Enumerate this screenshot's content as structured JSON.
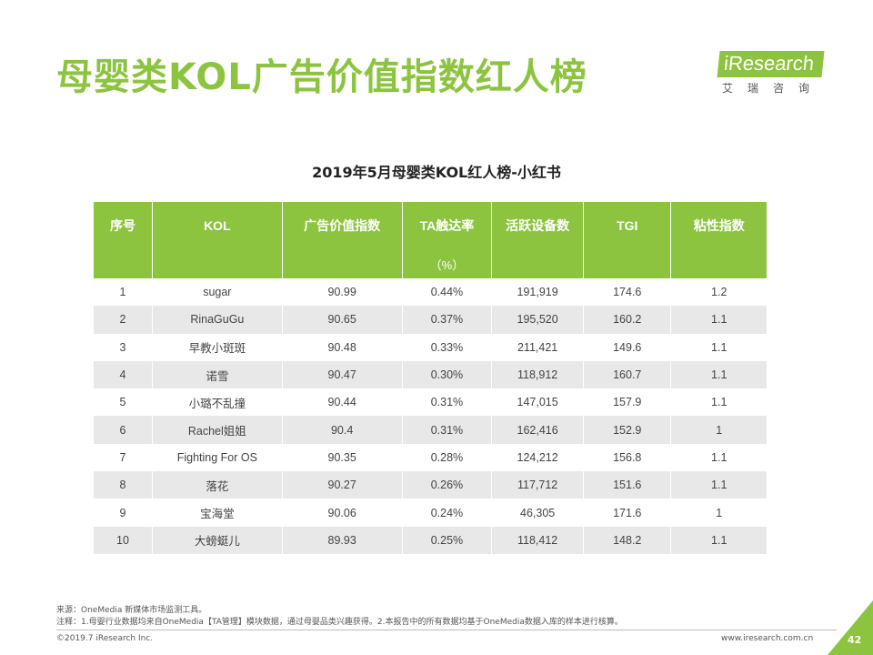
{
  "page": {
    "title": "母婴类KOL广告价值指数红人榜",
    "page_number": "42"
  },
  "brand": {
    "name": "iResearch",
    "sub": "艾瑞咨询",
    "color": "#8cc43f"
  },
  "table": {
    "title": "2019年5月母婴类KOL红人榜-小红书",
    "headers": [
      "序号",
      "KOL",
      "广告价值指数",
      "TA触达率",
      "活跃设备数",
      "TGI",
      "粘性指数"
    ],
    "unit_row": [
      "",
      "",
      "",
      "（%）",
      "",
      "",
      ""
    ],
    "rows": [
      [
        "1",
        "sugar",
        "90.99",
        "0.44%",
        "191,919",
        "174.6",
        "1.2"
      ],
      [
        "2",
        "RinaGuGu",
        "90.65",
        "0.37%",
        "195,520",
        "160.2",
        "1.1"
      ],
      [
        "3",
        "早教小斑斑",
        "90.48",
        "0.33%",
        "211,421",
        "149.6",
        "1.1"
      ],
      [
        "4",
        "诺雪",
        "90.47",
        "0.30%",
        "118,912",
        "160.7",
        "1.1"
      ],
      [
        "5",
        "小璐不乱撞",
        "90.44",
        "0.31%",
        "147,015",
        "157.9",
        "1.1"
      ],
      [
        "6",
        "Rachel姐姐",
        "90.4",
        "0.31%",
        "162,416",
        "152.9",
        "1"
      ],
      [
        "7",
        "Fighting For OS",
        "90.35",
        "0.28%",
        "124,212",
        "156.8",
        "1.1"
      ],
      [
        "8",
        "落花",
        "90.27",
        "0.26%",
        "117,712",
        "151.6",
        "1.1"
      ],
      [
        "9",
        "宝海堂",
        "90.06",
        "0.24%",
        "46,305",
        "171.6",
        "1"
      ],
      [
        "10",
        "大螃蜓儿",
        "89.93",
        "0.25%",
        "118,412",
        "148.2",
        "1.1"
      ]
    ]
  },
  "footer": {
    "source": "来源：OneMedia 新媒体市场监测工具。",
    "note": "注释：1.母婴行业数据均来自OneMedia【TA管理】模块数据，通过母婴品类兴趣获得。2.本报告中的所有数据均基于OneMedia数据入库的样本进行核算。",
    "copyright": "©2019.7 iResearch Inc.",
    "website": "www.iresearch.com.cn"
  }
}
